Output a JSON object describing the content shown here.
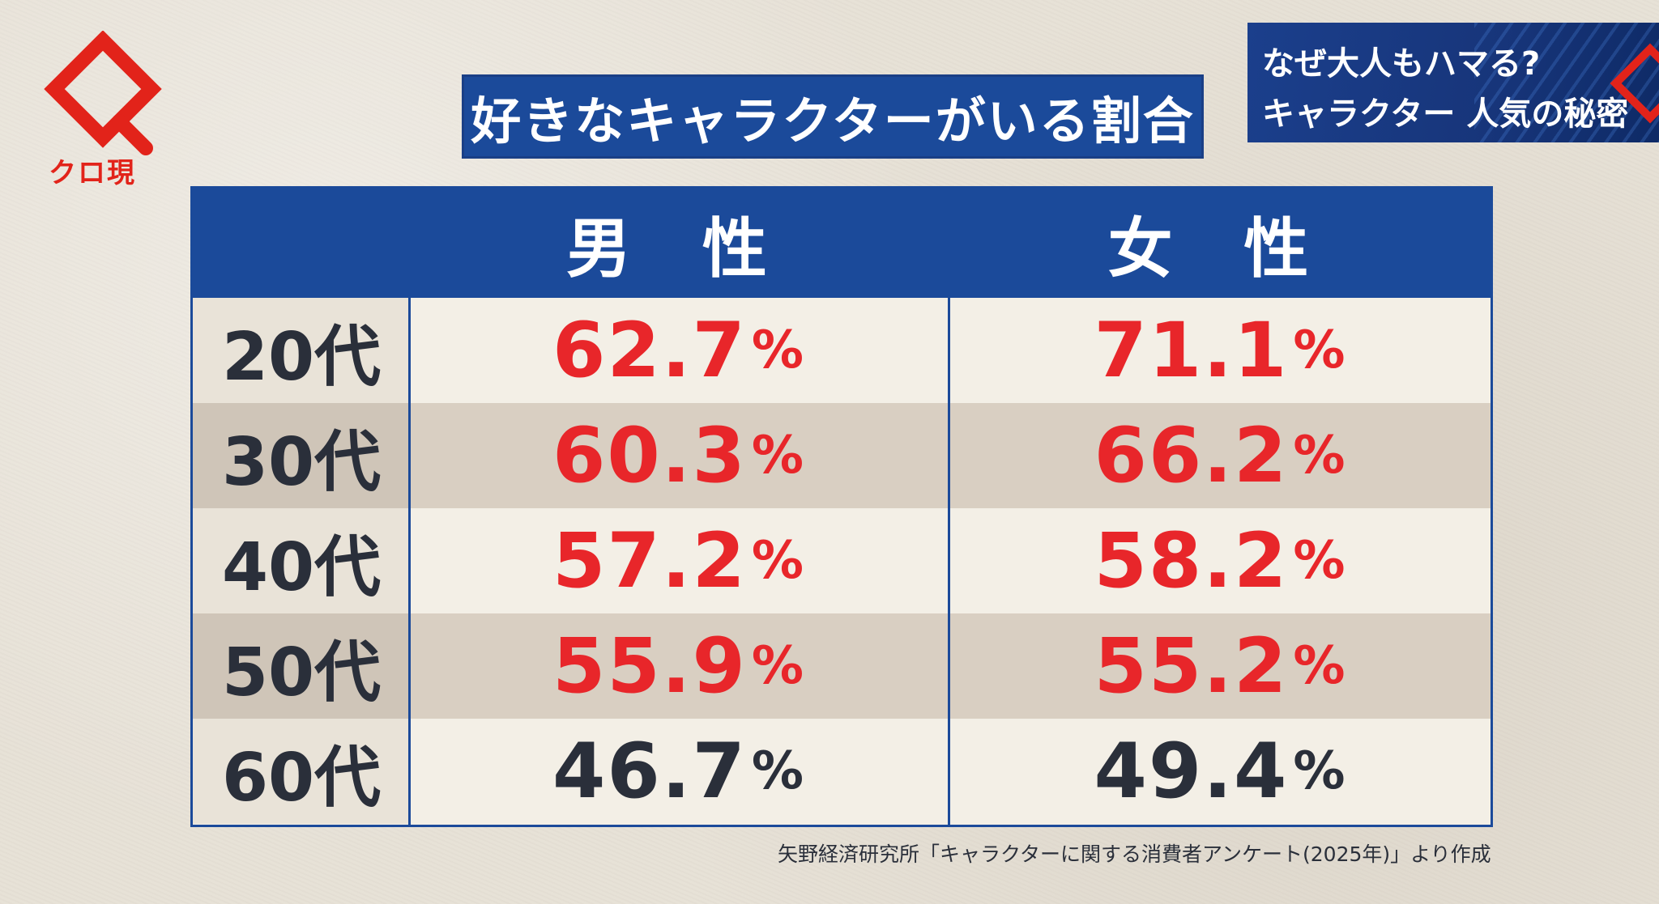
{
  "logo": {
    "label": "クロ現"
  },
  "title": "好きなキャラクターがいる割合",
  "corner": {
    "line1": "なぜ大人もハマる?",
    "line2": "キャラクター 人気の秘密"
  },
  "table": {
    "columns": [
      "男 性",
      "女 性"
    ],
    "rows": [
      {
        "age": "20代",
        "male": "62.7",
        "female": "71.1",
        "highlight": true
      },
      {
        "age": "30代",
        "male": "60.3",
        "female": "66.2",
        "highlight": true
      },
      {
        "age": "40代",
        "male": "57.2",
        "female": "58.2",
        "highlight": true
      },
      {
        "age": "50代",
        "male": "55.9",
        "female": "55.2",
        "highlight": true
      },
      {
        "age": "60代",
        "male": "46.7",
        "female": "49.4",
        "highlight": false
      }
    ],
    "percent_sign": "%"
  },
  "source": "矢野経済研究所「キャラクターに関する消費者アンケート(2025年)」より作成",
  "colors": {
    "accent_red": "#e8262a",
    "header_blue": "#1b4a9a",
    "logo_red": "#e2231a"
  }
}
